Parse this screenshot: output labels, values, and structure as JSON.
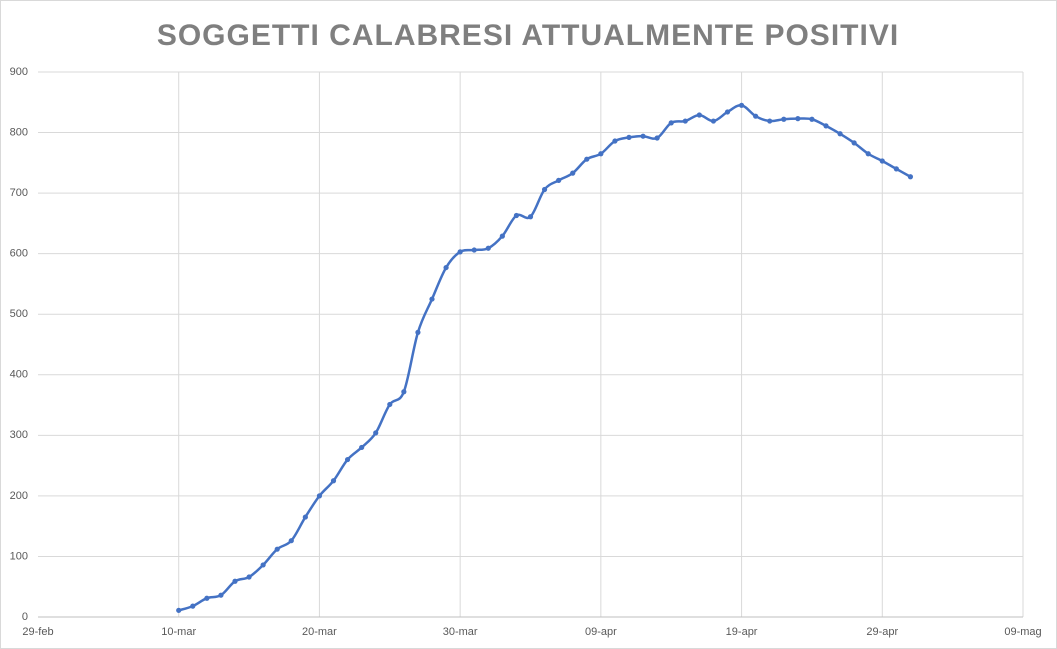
{
  "chart_data": {
    "type": "line",
    "title": "SOGGETTI CALABRESI ATTUALMENTE POSITIVI",
    "categories": [
      "29-feb",
      null,
      null,
      null,
      null,
      null,
      null,
      null,
      null,
      null,
      "10-mar",
      null,
      null,
      null,
      null,
      null,
      null,
      null,
      null,
      null,
      "20-mar",
      null,
      null,
      null,
      null,
      null,
      null,
      null,
      null,
      null,
      "30-mar",
      null,
      null,
      null,
      null,
      null,
      null,
      null,
      null,
      null,
      "09-apr",
      null,
      null,
      null,
      null,
      null,
      null,
      null,
      null,
      null,
      "19-apr",
      null,
      null,
      null,
      null,
      null,
      null,
      null,
      null,
      null,
      "29-apr",
      null,
      null,
      null,
      null,
      null,
      null,
      null,
      null,
      null,
      "09-mag"
    ],
    "values": [
      null,
      null,
      null,
      null,
      null,
      null,
      null,
      null,
      null,
      null,
      11,
      18,
      31,
      36,
      59,
      66,
      86,
      112,
      126,
      165,
      200,
      225,
      260,
      280,
      304,
      351,
      372,
      470,
      525,
      577,
      603,
      606,
      609,
      629,
      663,
      661,
      706,
      721,
      733,
      756,
      765,
      786,
      792,
      794,
      791,
      816,
      819,
      829,
      819,
      834,
      845,
      827,
      819,
      822,
      823,
      822,
      811,
      798,
      783,
      765,
      753,
      740,
      727,
      null,
      null,
      null,
      null,
      null,
      null,
      null,
      null
    ],
    "color": "#4472c4",
    "ylim": [
      0,
      900
    ],
    "yticks": [
      0,
      100,
      200,
      300,
      400,
      500,
      600,
      700,
      800,
      900
    ],
    "grid": true
  }
}
